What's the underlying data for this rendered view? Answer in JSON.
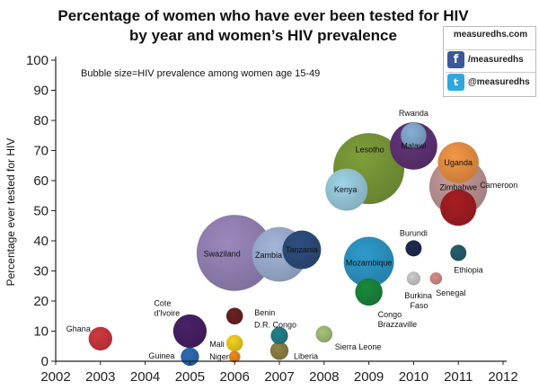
{
  "chart_data": {
    "type": "scatter",
    "title_lines": [
      "Percentage of women who have ever been tested for HIV",
      "by year and women’s HIV prevalence"
    ],
    "ylabel": "Percentage ever tested for HIV",
    "xlabel": "",
    "note": "Bubble size=HIV prevalence among women age 15-49",
    "xlim": [
      2002,
      2012
    ],
    "ylim": [
      0,
      100
    ],
    "xticks": [
      "2002",
      "2003",
      "2004",
      "2005",
      "2006",
      "2007",
      "2008",
      "2009",
      "2010",
      "2011",
      "2012"
    ],
    "yticks": [
      "0",
      "10",
      "20",
      "30",
      "40",
      "50",
      "60",
      "70",
      "80",
      "90",
      "100"
    ],
    "grid": false,
    "legend": "none",
    "points": [
      {
        "name": "Swaziland",
        "x": 2006,
        "y": 36,
        "size": 31,
        "color": "#9b88bd"
      },
      {
        "name": "Lesotho",
        "x": 2009,
        "y": 64,
        "size": 27,
        "color": "#7e9e3a"
      },
      {
        "name": "Zambia",
        "x": 2007,
        "y": 35.5,
        "size": 16,
        "color": "#a3b6da"
      },
      {
        "name": "Zimbabwe",
        "x": 2011,
        "y": 58,
        "size": 18,
        "color": "#c49a9a"
      },
      {
        "name": "Mozambique",
        "x": 2009,
        "y": 33,
        "size": 13.5,
        "color": "#2e9bcc"
      },
      {
        "name": "Malawi",
        "x": 2010,
        "y": 71.5,
        "size": 12,
        "color": "#63347a"
      },
      {
        "name": "Tanzania",
        "x": 2007.5,
        "y": 37,
        "size": 8,
        "color": "#2d4f80"
      },
      {
        "name": "Kenya",
        "x": 2008.5,
        "y": 57,
        "size": 9.5,
        "color": "#9fd3e6"
      },
      {
        "name": "Uganda",
        "x": 2011,
        "y": 66,
        "size": 9,
        "color": "#f39647"
      },
      {
        "name": "Cameroon",
        "x": 2011,
        "y": 51,
        "size": 7,
        "color": "#a81e24"
      },
      {
        "name": "Rwanda",
        "x": 2010,
        "y": 75,
        "size": 3.5,
        "color": "#85aed6"
      },
      {
        "name": "Congo Brazzaville",
        "x": 2009,
        "y": 23,
        "size": 4,
        "color": "#1a8a3c"
      },
      {
        "name": "Cote d'Ivoire",
        "x": 2005,
        "y": 10,
        "size": 6,
        "color": "#4a2168"
      },
      {
        "name": "Ghana",
        "x": 2003,
        "y": 7.5,
        "size": 3,
        "color": "#d1393f"
      },
      {
        "name": "Benin",
        "x": 2006,
        "y": 15,
        "size": 1.5,
        "color": "#6b2222"
      },
      {
        "name": "D.R. Congo",
        "x": 2007,
        "y": 8.5,
        "size": 1.6,
        "color": "#26808c"
      },
      {
        "name": "Mali",
        "x": 2006,
        "y": 6,
        "size": 1.5,
        "color": "#f4d21e"
      },
      {
        "name": "Niger",
        "x": 2006,
        "y": 1.5,
        "size": 0.7,
        "color": "#f08a20"
      },
      {
        "name": "Guinea",
        "x": 2005,
        "y": 1.5,
        "size": 1.8,
        "color": "#2e6bb5"
      },
      {
        "name": "Liberia",
        "x": 2007,
        "y": 3.5,
        "size": 1.8,
        "color": "#908443"
      },
      {
        "name": "Sierra Leone",
        "x": 2008,
        "y": 9,
        "size": 1.5,
        "color": "#a6c27a"
      },
      {
        "name": "Burundi",
        "x": 2010,
        "y": 37.5,
        "size": 1.4,
        "color": "#1c2d4f"
      },
      {
        "name": "Ethiopia",
        "x": 2011,
        "y": 36,
        "size": 1.4,
        "color": "#26606e"
      },
      {
        "name": "Burkina Faso",
        "x": 2010,
        "y": 27.5,
        "size": 1,
        "color": "#cdcdcd"
      },
      {
        "name": "Senegal",
        "x": 2010.5,
        "y": 27.5,
        "size": 0.8,
        "color": "#d98b86"
      }
    ]
  },
  "social": {
    "site": "measuredhs.com",
    "facebook": "/measuredhs",
    "twitter": "@measuredhs",
    "facebook_icon": "facebook-icon",
    "twitter_icon": "twitter-icon"
  }
}
